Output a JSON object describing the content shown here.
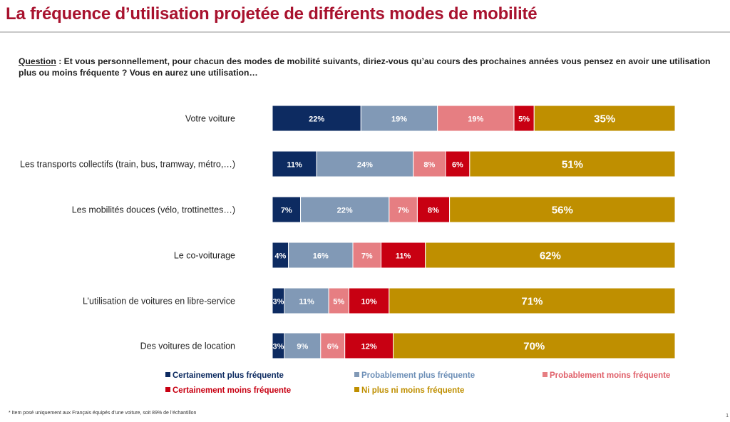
{
  "page": {
    "title": "La fréquence d’utilisation projetée de différents modes de mobilité",
    "question_label": "Question",
    "question_text": " :  Et vous personnellement, pour chacun des modes de mobilité suivants, diriez-vous qu’au cours des prochaines années vous pensez en avoir une utilisation plus ou moins fréquente ? Vous en aurez une utilisation…",
    "footnote": "* Item posé uniquement aux Français équipés d’une voiture, soit 89% de l’échantillon",
    "page_number": "1"
  },
  "chart_data": {
    "type": "bar",
    "orientation": "horizontal",
    "stacked": true,
    "percent_stacked": true,
    "title": "",
    "xlabel": "",
    "ylabel": "",
    "xlim": [
      0,
      100
    ],
    "grid": false,
    "legend_position": "bottom",
    "categories": [
      "Votre voiture",
      "Les transports collectifs (train, bus, tramway, métro,…)",
      "Les mobilités douces (vélo, trottinettes…)",
      "Le co-voiturage",
      "L’utilisation de voitures en libre-service",
      "Des voitures de location"
    ],
    "series": [
      {
        "name": "Certainement plus fréquente",
        "color": "#0d2b61",
        "label_color": "#ffffff",
        "values": [
          22,
          11,
          7,
          4,
          3,
          3
        ]
      },
      {
        "name": "Probablement plus fréquente",
        "color": "#8199b6",
        "label_color": "#ffffff",
        "values": [
          19,
          24,
          22,
          16,
          11,
          9
        ]
      },
      {
        "name": "Probablement moins fréquente",
        "color": "#e67e82",
        "label_color": "#ffffff",
        "values": [
          19,
          8,
          7,
          7,
          5,
          6
        ]
      },
      {
        "name": "Certainement moins fréquente",
        "color": "#c80012",
        "label_color": "#ffffff",
        "values": [
          5,
          6,
          8,
          11,
          10,
          12
        ]
      },
      {
        "name": "Ni plus ni moins fréquente",
        "color": "#bf8f00",
        "label_color": "#ffffff",
        "values": [
          35,
          51,
          56,
          62,
          71,
          70
        ]
      }
    ],
    "legend_text_colors": [
      "#0d2b61",
      "#6d8fb7",
      "#e0606a",
      "#c80012",
      "#bf8f00"
    ]
  }
}
